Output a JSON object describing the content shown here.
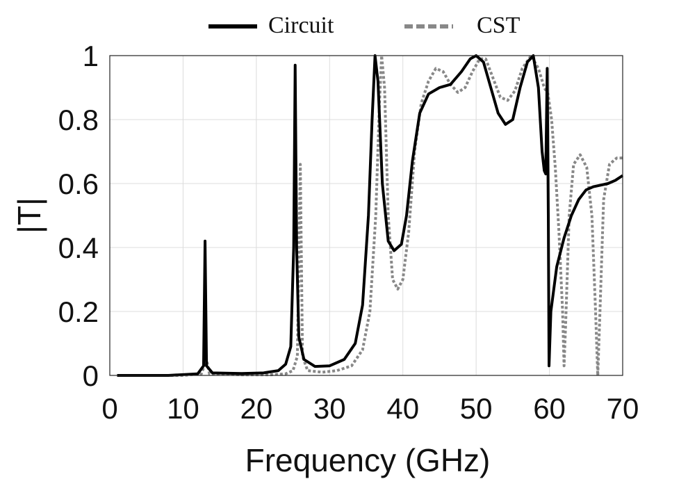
{
  "chart_data": {
    "type": "line",
    "xlabel": "Frequency (GHz)",
    "ylabel": "|T|",
    "xlim": [
      0,
      70
    ],
    "ylim": [
      0,
      1
    ],
    "xticks": [
      "0",
      "10",
      "20",
      "30",
      "40",
      "50",
      "60",
      "70"
    ],
    "yticks": [
      "0",
      "0.2",
      "0.4",
      "0.6",
      "0.8",
      "1"
    ],
    "grid": true,
    "legend_position": "top",
    "series": [
      {
        "name": "Circuit",
        "color": "#000000",
        "style": "solid",
        "points": [
          [
            1,
            0
          ],
          [
            8,
            0
          ],
          [
            12,
            0.005
          ],
          [
            12.8,
            0.03
          ],
          [
            13.0,
            0.42
          ],
          [
            13.2,
            0.03
          ],
          [
            14,
            0.008
          ],
          [
            18,
            0.006
          ],
          [
            21,
            0.008
          ],
          [
            23,
            0.015
          ],
          [
            24,
            0.035
          ],
          [
            24.7,
            0.09
          ],
          [
            25.1,
            0.4
          ],
          [
            25.3,
            0.97
          ],
          [
            25.5,
            0.4
          ],
          [
            25.8,
            0.12
          ],
          [
            26.5,
            0.05
          ],
          [
            28,
            0.028
          ],
          [
            30,
            0.03
          ],
          [
            32,
            0.05
          ],
          [
            33.5,
            0.1
          ],
          [
            34.5,
            0.22
          ],
          [
            35.3,
            0.5
          ],
          [
            35.8,
            0.8
          ],
          [
            36.2,
            1.0
          ],
          [
            36.6,
            0.92
          ],
          [
            37.2,
            0.6
          ],
          [
            38,
            0.42
          ],
          [
            38.8,
            0.39
          ],
          [
            39.8,
            0.41
          ],
          [
            40.5,
            0.5
          ],
          [
            41.3,
            0.67
          ],
          [
            42.3,
            0.82
          ],
          [
            43.5,
            0.88
          ],
          [
            45,
            0.9
          ],
          [
            46.5,
            0.91
          ],
          [
            48,
            0.95
          ],
          [
            49.2,
            0.99
          ],
          [
            50,
            1.0
          ],
          [
            51,
            0.98
          ],
          [
            52,
            0.9
          ],
          [
            53,
            0.82
          ],
          [
            54,
            0.785
          ],
          [
            55,
            0.8
          ],
          [
            56,
            0.9
          ],
          [
            57,
            0.98
          ],
          [
            57.8,
            1.0
          ],
          [
            58.5,
            0.9
          ],
          [
            59,
            0.7
          ],
          [
            59.3,
            0.64
          ],
          [
            59.5,
            0.63
          ],
          [
            59.7,
            0.96
          ],
          [
            59.85,
            0.5
          ],
          [
            59.95,
            0.03
          ],
          [
            60.2,
            0.2
          ],
          [
            61,
            0.34
          ],
          [
            62,
            0.43
          ],
          [
            63,
            0.5
          ],
          [
            64,
            0.55
          ],
          [
            65,
            0.58
          ],
          [
            66,
            0.59
          ],
          [
            67,
            0.595
          ],
          [
            68,
            0.6
          ],
          [
            69,
            0.61
          ],
          [
            70,
            0.625
          ]
        ]
      },
      {
        "name": "CST",
        "color": "#888888",
        "style": "dotted",
        "points": [
          [
            1,
            0
          ],
          [
            10,
            0
          ],
          [
            12.5,
            0.005
          ],
          [
            13.2,
            0.05
          ],
          [
            13.6,
            0.005
          ],
          [
            18,
            0.002
          ],
          [
            22,
            0.002
          ],
          [
            24,
            0.005
          ],
          [
            25,
            0.015
          ],
          [
            25.6,
            0.06
          ],
          [
            26.0,
            0.66
          ],
          [
            26.3,
            0.06
          ],
          [
            27,
            0.015
          ],
          [
            29,
            0.01
          ],
          [
            31,
            0.015
          ],
          [
            33,
            0.03
          ],
          [
            34.5,
            0.08
          ],
          [
            35.5,
            0.2
          ],
          [
            36.3,
            0.5
          ],
          [
            36.8,
            0.85
          ],
          [
            37.1,
            1.0
          ],
          [
            37.5,
            0.9
          ],
          [
            38,
            0.5
          ],
          [
            38.6,
            0.3
          ],
          [
            39.3,
            0.27
          ],
          [
            40,
            0.3
          ],
          [
            40.8,
            0.45
          ],
          [
            41.6,
            0.7
          ],
          [
            42.5,
            0.85
          ],
          [
            43.5,
            0.92
          ],
          [
            44.5,
            0.96
          ],
          [
            45.5,
            0.95
          ],
          [
            46.5,
            0.91
          ],
          [
            47.5,
            0.885
          ],
          [
            48.5,
            0.9
          ],
          [
            49.5,
            0.95
          ],
          [
            50.5,
            0.99
          ],
          [
            51.3,
            0.99
          ],
          [
            52.3,
            0.93
          ],
          [
            53.3,
            0.87
          ],
          [
            54.3,
            0.86
          ],
          [
            55.3,
            0.89
          ],
          [
            56.3,
            0.96
          ],
          [
            57.5,
            1.0
          ],
          [
            58.5,
            0.96
          ],
          [
            59.3,
            0.9
          ],
          [
            59.8,
            0.88
          ],
          [
            60.3,
            0.8
          ],
          [
            60.8,
            0.65
          ],
          [
            61.3,
            0.45
          ],
          [
            61.8,
            0.2
          ],
          [
            62.0,
            0.03
          ],
          [
            62.2,
            0.15
          ],
          [
            62.7,
            0.5
          ],
          [
            63.3,
            0.66
          ],
          [
            64.2,
            0.69
          ],
          [
            65.1,
            0.65
          ],
          [
            65.8,
            0.5
          ],
          [
            66.3,
            0.2
          ],
          [
            66.6,
            0.0
          ],
          [
            66.9,
            0.2
          ],
          [
            67.4,
            0.55
          ],
          [
            68.2,
            0.66
          ],
          [
            69.2,
            0.68
          ],
          [
            70,
            0.68
          ]
        ]
      }
    ]
  }
}
